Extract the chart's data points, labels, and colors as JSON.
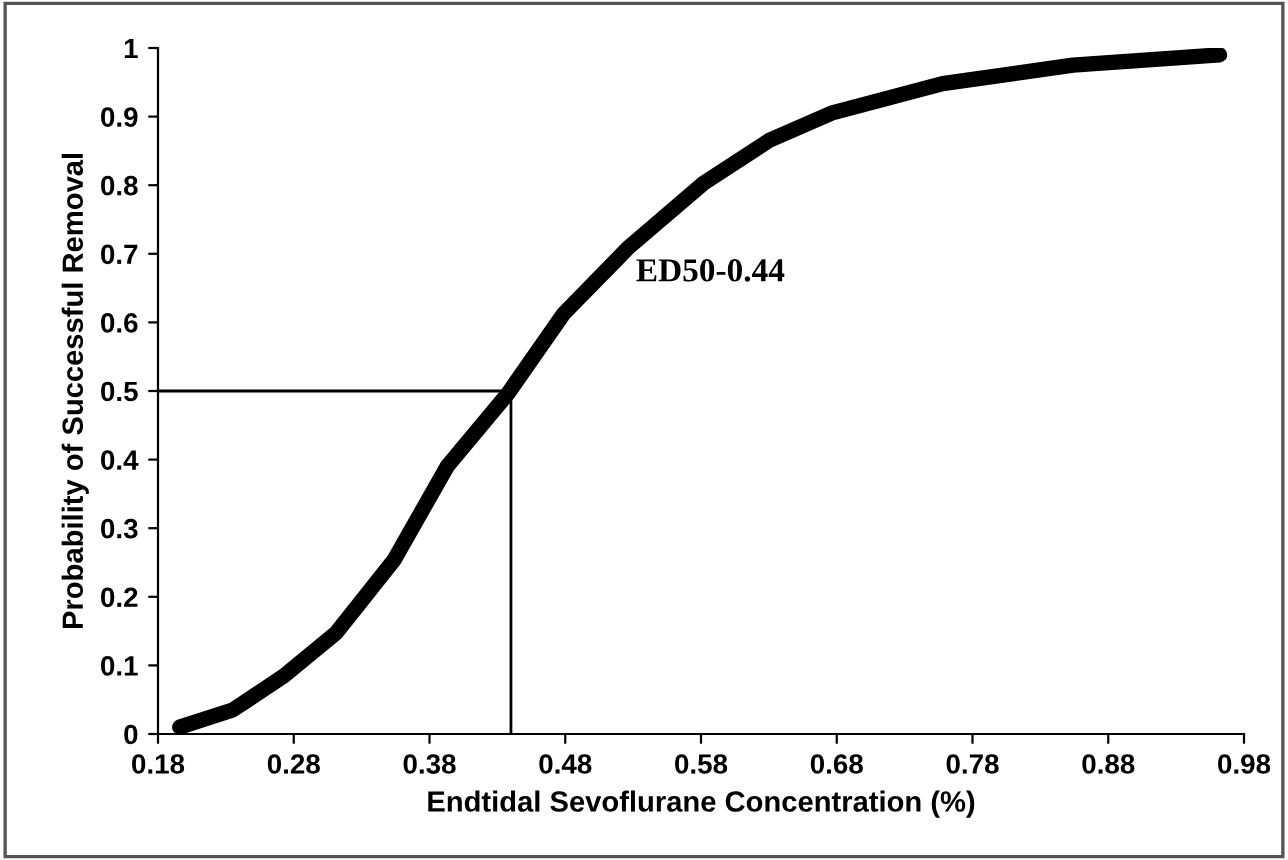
{
  "chart_data": {
    "type": "line",
    "xlabel": "Endtidal Sevoflurane Concentration (%)",
    "ylabel": "Probability of Successful Removal",
    "annotations": [
      "ED50-0.44"
    ],
    "series": [
      {
        "color": "#000000",
        "x": [
          0.196,
          0.235,
          0.273,
          0.311,
          0.354,
          0.393,
          0.438,
          0.479,
          0.527,
          0.582,
          0.63,
          0.676,
          0.758,
          0.854,
          0.962
        ],
        "values": [
          0.01,
          0.035,
          0.085,
          0.147,
          0.254,
          0.39,
          0.497,
          0.613,
          0.71,
          0.803,
          0.865,
          0.905,
          0.948,
          0.975,
          0.99
        ]
      },
      {
        "color": "#000000",
        "x": [
          0.18,
          0.44,
          0.44
        ],
        "values": [
          0.5,
          0.5,
          0
        ]
      }
    ],
    "xlim": [
      0.18,
      0.98
    ],
    "xticks": [
      0.18,
      0.28,
      0.38,
      0.48,
      0.58,
      0.68,
      0.78,
      0.88,
      0.98
    ],
    "ylim": [
      0,
      1
    ],
    "yticks": [
      0,
      0.1,
      0.2,
      0.3,
      0.4,
      0.5,
      0.6,
      0.7,
      0.8,
      0.9,
      1
    ],
    "grid": false,
    "legend": false
  }
}
